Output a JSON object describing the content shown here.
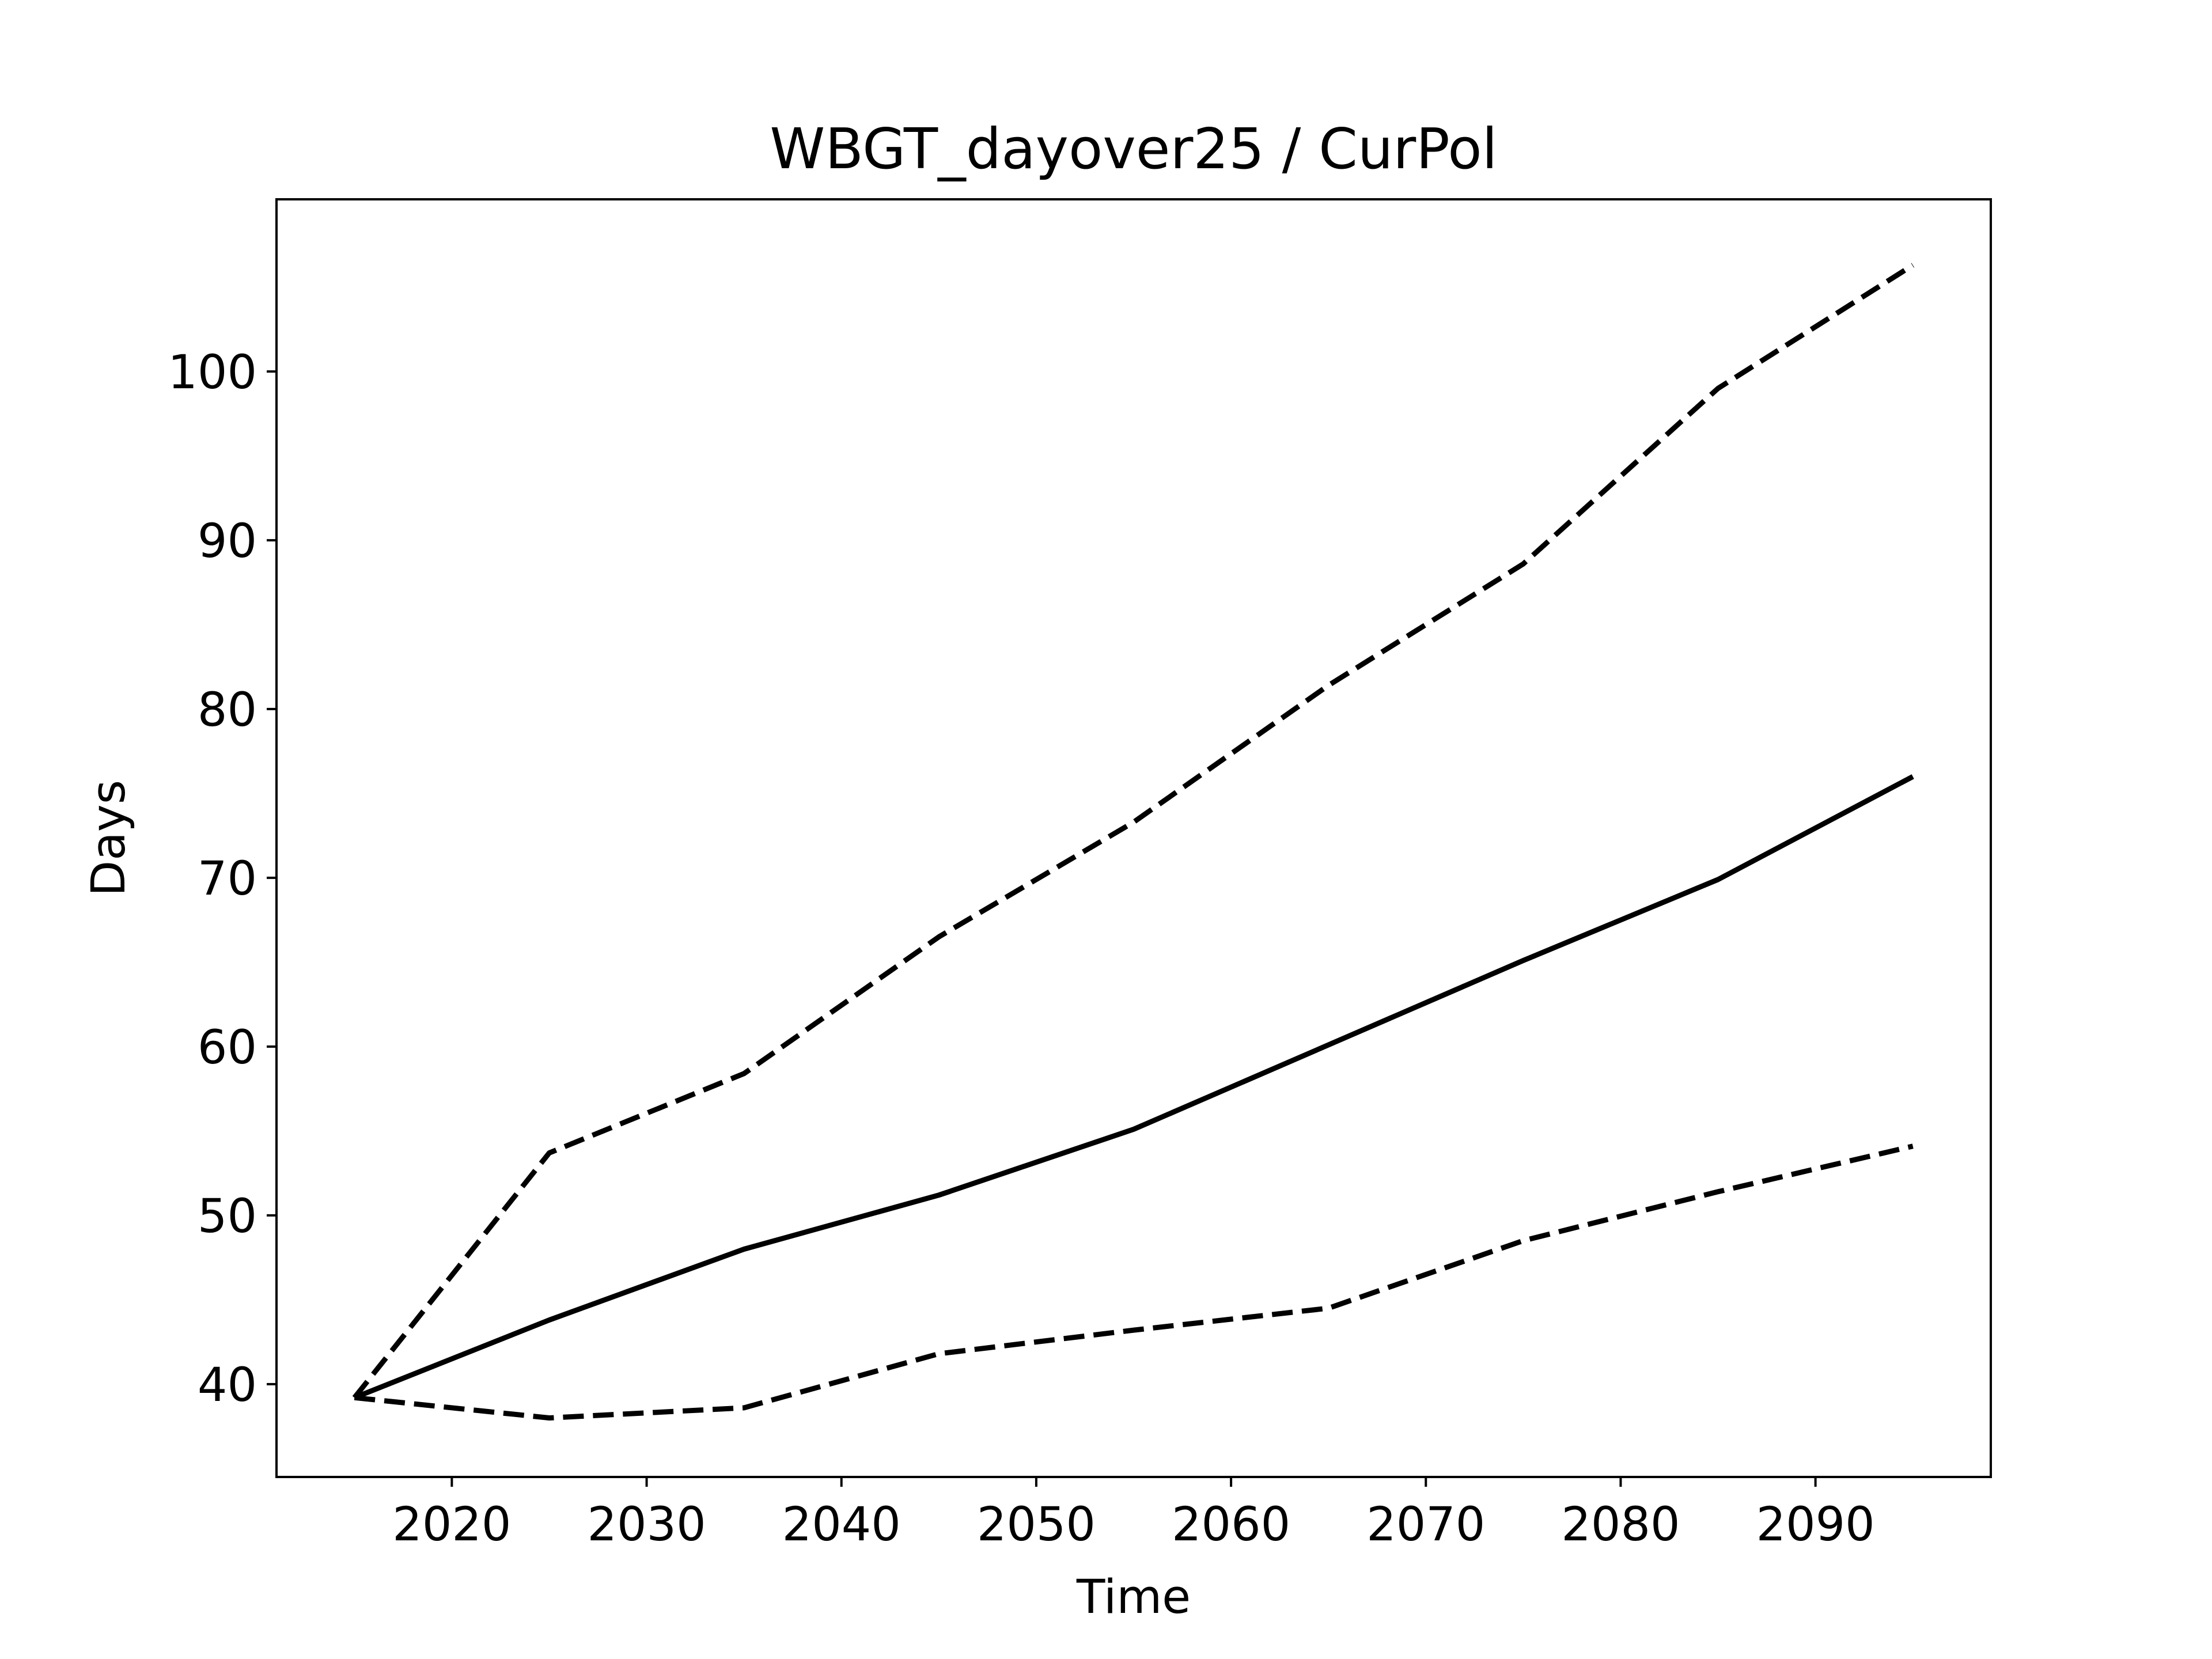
{
  "chart_data": {
    "type": "line",
    "title": "WBGT_dayover25 / CurPol",
    "xlabel": "Time",
    "ylabel": "Days",
    "x": [
      2015,
      2025,
      2035,
      2045,
      2055,
      2065,
      2075,
      2085,
      2095
    ],
    "xlim": [
      2011,
      2099
    ],
    "ylim": [
      34.5,
      110.2
    ],
    "xticks": [
      "2020",
      "2030",
      "2040",
      "2050",
      "2060",
      "2070",
      "2080",
      "2090"
    ],
    "yticks": [
      "40",
      "50",
      "60",
      "70",
      "80",
      "90",
      "100"
    ],
    "grid": false,
    "series": [
      {
        "style": "solid",
        "color": "#000000",
        "values": [
          39.2,
          43.8,
          48.0,
          51.2,
          55.1,
          60.1,
          65.1,
          69.9,
          76.0
        ]
      },
      {
        "style": "dashed",
        "color": "#000000",
        "values": [
          39.2,
          53.7,
          58.4,
          66.5,
          73.3,
          81.4,
          88.6,
          99.0,
          106.3
        ]
      },
      {
        "style": "dashed",
        "color": "#000000",
        "values": [
          39.2,
          38.0,
          38.6,
          41.8,
          43.2,
          44.5,
          48.5,
          51.4,
          54.1
        ]
      }
    ]
  }
}
